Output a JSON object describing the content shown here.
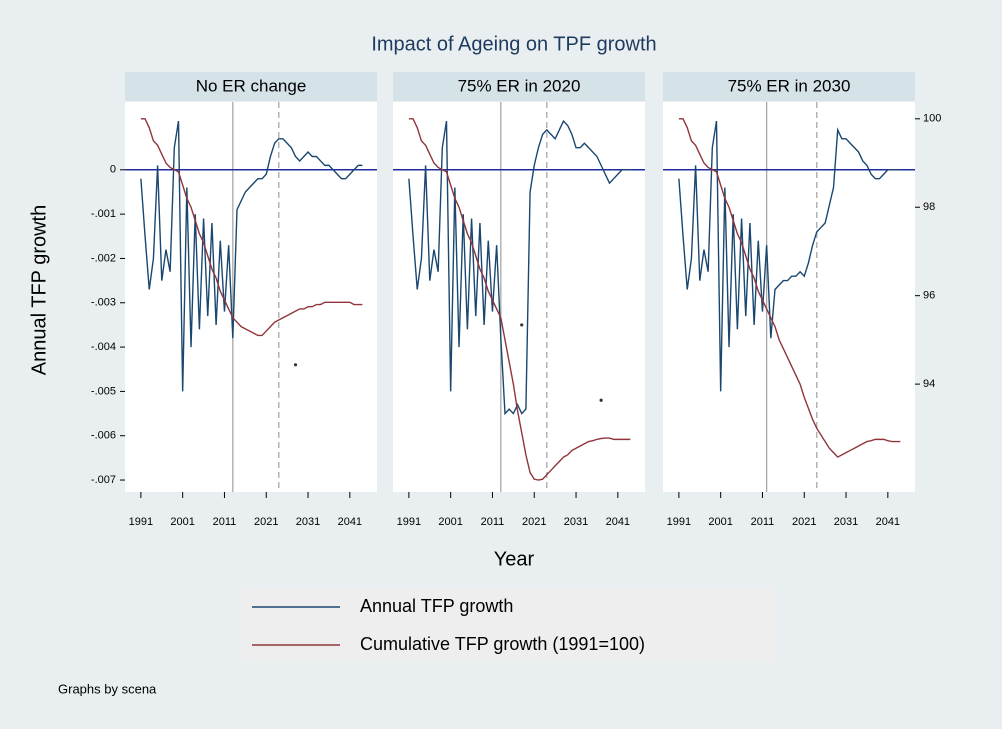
{
  "title": "Impact of Ageing on TPF growth",
  "xlabel": "Year",
  "ylabel": "Annual TFP growth",
  "note": "Graphs by scena",
  "chart_data": [
    {
      "type": "line",
      "panel_title": "No ER change",
      "x": [
        1991,
        1992,
        1993,
        1994,
        1995,
        1996,
        1997,
        1998,
        1999,
        2000,
        2001,
        2002,
        2003,
        2004,
        2005,
        2006,
        2007,
        2008,
        2009,
        2010,
        2011,
        2012,
        2013,
        2014,
        2015,
        2016,
        2017,
        2018,
        2019,
        2020,
        2021,
        2022,
        2023,
        2024,
        2025,
        2026,
        2027,
        2028,
        2029,
        2030,
        2031,
        2032,
        2033,
        2034,
        2035,
        2036,
        2037,
        2038,
        2039,
        2040,
        2041,
        2042,
        2043,
        2044
      ],
      "series": [
        {
          "name": "Annual TFP growth",
          "color": "#1a476f",
          "values": [
            -0.0002,
            -0.0015,
            -0.0027,
            -0.002,
            0.0001,
            -0.0025,
            -0.0018,
            -0.0023,
            0.0005,
            0.0011,
            -0.005,
            -0.0004,
            -0.004,
            -0.001,
            -0.0036,
            -0.0011,
            -0.0033,
            -0.0012,
            -0.0035,
            -0.0016,
            -0.0032,
            -0.0017,
            -0.0038,
            -0.0009,
            -0.0007,
            -0.0005,
            -0.0004,
            -0.0003,
            -0.0002,
            -0.0002,
            -0.0001,
            0.0003,
            0.0006,
            0.0007,
            0.0007,
            0.0006,
            0.0005,
            0.0003,
            0.0002,
            0.0003,
            0.0004,
            0.0003,
            0.0003,
            0.0002,
            0.0001,
            0.0001,
            0,
            -0.0001,
            -0.0002,
            -0.0002,
            -0.0001,
            0,
            0.0001,
            0.0001
          ]
        },
        {
          "name": "Cumulative TFP growth (1991=100)",
          "color": "#90353b",
          "axis": "y2",
          "values": [
            100,
            100,
            99.8,
            99.5,
            99.4,
            99.2,
            99,
            98.9,
            98.85,
            98.8,
            98.5,
            98.2,
            98,
            97.7,
            97.4,
            97.2,
            96.9,
            96.6,
            96.4,
            96.1,
            95.9,
            95.7,
            95.5,
            95.4,
            95.3,
            95.25,
            95.2,
            95.15,
            95.1,
            95.1,
            95.2,
            95.3,
            95.4,
            95.45,
            95.5,
            95.55,
            95.6,
            95.65,
            95.7,
            95.7,
            95.75,
            95.75,
            95.8,
            95.8,
            95.85,
            95.85,
            95.85,
            95.85,
            95.85,
            95.85,
            95.85,
            95.8,
            95.8,
            95.8
          ]
        }
      ],
      "points": [
        {
          "x": 2028,
          "y": -0.0044
        }
      ],
      "hline": {
        "y": 0,
        "color": "#1f2ca0"
      },
      "vlines": [
        {
          "x": 2013,
          "dashed": false
        },
        {
          "x": 2024,
          "dashed": true
        }
      ],
      "xlim": [
        1987.2,
        2047.5
      ],
      "xticks": [
        1991,
        2001,
        2011,
        2021,
        2031,
        2041
      ],
      "ylim": [
        -0.00727,
        0.00153
      ],
      "yticks": [
        {
          "value": 0,
          "label": "0"
        },
        {
          "value": -0.001,
          "label": "-.001"
        },
        {
          "value": -0.002,
          "label": "-.002"
        },
        {
          "value": -0.003,
          "label": "-.003"
        },
        {
          "value": -0.004,
          "label": "-.004"
        },
        {
          "value": -0.005,
          "label": "-.005"
        },
        {
          "value": -0.006,
          "label": "-.006"
        },
        {
          "value": -0.007,
          "label": "-.007"
        }
      ],
      "y2lim": [
        91.56,
        100.38
      ]
    },
    {
      "type": "line",
      "panel_title": "75% ER in 2020",
      "x": [
        1991,
        1992,
        1993,
        1994,
        1995,
        1996,
        1997,
        1998,
        1999,
        2000,
        2001,
        2002,
        2003,
        2004,
        2005,
        2006,
        2007,
        2008,
        2009,
        2010,
        2011,
        2012,
        2013,
        2014,
        2015,
        2016,
        2017,
        2018,
        2019,
        2020,
        2021,
        2022,
        2023,
        2024,
        2025,
        2026,
        2027,
        2028,
        2029,
        2030,
        2031,
        2032,
        2033,
        2034,
        2035,
        2036,
        2037,
        2038,
        2039,
        2040,
        2041,
        2042,
        2043,
        2044
      ],
      "series": [
        {
          "color": "#1a476f",
          "values": [
            -0.0002,
            -0.0015,
            -0.0027,
            -0.002,
            0.0001,
            -0.0025,
            -0.0018,
            -0.0023,
            0.0005,
            0.0011,
            -0.005,
            -0.0004,
            -0.004,
            -0.001,
            -0.0036,
            -0.0011,
            -0.0033,
            -0.0012,
            -0.0035,
            -0.0016,
            -0.0032,
            -0.0017,
            -0.0038,
            -0.0055,
            -0.0054,
            -0.0055,
            -0.0053,
            -0.0055,
            -0.0054,
            -0.0005,
            0.0001,
            0.0005,
            0.0008,
            0.0009,
            0.0008,
            0.0007,
            0.0009,
            0.0011,
            0.001,
            0.0008,
            0.0005,
            0.0005,
            0.0006,
            0.0005,
            0.0004,
            0.0003,
            0.0001,
            -0.0001,
            -0.0003,
            -0.0002,
            -0.0001,
            0,
            0,
            0
          ]
        },
        {
          "color": "#90353b",
          "axis": "y2",
          "values": [
            100,
            100,
            99.8,
            99.5,
            99.4,
            99.2,
            99,
            98.9,
            98.85,
            98.8,
            98.5,
            98.2,
            98,
            97.7,
            97.4,
            97.2,
            96.9,
            96.6,
            96.4,
            96.1,
            95.9,
            95.7,
            95.5,
            95,
            94.5,
            94,
            93.4,
            92.9,
            92.4,
            92,
            91.85,
            91.83,
            91.85,
            91.95,
            92.05,
            92.15,
            92.25,
            92.35,
            92.4,
            92.5,
            92.55,
            92.6,
            92.65,
            92.7,
            92.72,
            92.75,
            92.77,
            92.78,
            92.78,
            92.75,
            92.75,
            92.75,
            92.75,
            92.75
          ]
        }
      ],
      "points": [
        {
          "x": 2018,
          "y": -0.0035
        },
        {
          "x": 2037,
          "y": -0.0052
        }
      ],
      "hline": {
        "y": 0,
        "color": "#1f2ca0"
      },
      "vlines": [
        {
          "x": 2013,
          "dashed": false
        },
        {
          "x": 2024,
          "dashed": true
        }
      ],
      "xlim": [
        1987.2,
        2047.5
      ],
      "xticks": [
        1991,
        2001,
        2011,
        2021,
        2031,
        2041
      ],
      "ylim": [
        -0.00727,
        0.00153
      ],
      "y2lim": [
        91.56,
        100.38
      ]
    },
    {
      "type": "line",
      "panel_title": "75% ER in 2030",
      "x": [
        1991,
        1992,
        1993,
        1994,
        1995,
        1996,
        1997,
        1998,
        1999,
        2000,
        2001,
        2002,
        2003,
        2004,
        2005,
        2006,
        2007,
        2008,
        2009,
        2010,
        2011,
        2012,
        2013,
        2014,
        2015,
        2016,
        2017,
        2018,
        2019,
        2020,
        2021,
        2022,
        2023,
        2024,
        2025,
        2026,
        2027,
        2028,
        2029,
        2030,
        2031,
        2032,
        2033,
        2034,
        2035,
        2036,
        2037,
        2038,
        2039,
        2040,
        2041,
        2042,
        2043,
        2044
      ],
      "series": [
        {
          "color": "#1a476f",
          "values": [
            -0.0002,
            -0.0015,
            -0.0027,
            -0.002,
            0.0001,
            -0.0025,
            -0.0018,
            -0.0023,
            0.0005,
            0.0011,
            -0.005,
            -0.0004,
            -0.004,
            -0.001,
            -0.0036,
            -0.0011,
            -0.0033,
            -0.0012,
            -0.0035,
            -0.0016,
            -0.0032,
            -0.0017,
            -0.0038,
            -0.0027,
            -0.0026,
            -0.0025,
            -0.0025,
            -0.0024,
            -0.0024,
            -0.0023,
            -0.0024,
            -0.0021,
            -0.0017,
            -0.0014,
            -0.0013,
            -0.0012,
            -0.0008,
            -0.0004,
            0.0009,
            0.0007,
            0.0007,
            0.0006,
            0.0005,
            0.0004,
            0.0002,
            0.0001,
            -0.0001,
            -0.0002,
            -0.0002,
            -0.0001,
            0,
            0,
            0,
            0
          ]
        },
        {
          "color": "#90353b",
          "axis": "y2",
          "values": [
            100,
            100,
            99.8,
            99.5,
            99.4,
            99.2,
            99,
            98.9,
            98.85,
            98.8,
            98.5,
            98.2,
            98,
            97.7,
            97.4,
            97.2,
            96.9,
            96.6,
            96.4,
            96.1,
            95.9,
            95.7,
            95.5,
            95.3,
            95,
            94.8,
            94.6,
            94.4,
            94.2,
            94,
            93.7,
            93.45,
            93.2,
            93,
            92.85,
            92.7,
            92.55,
            92.45,
            92.35,
            92.4,
            92.45,
            92.5,
            92.55,
            92.6,
            92.65,
            92.7,
            92.72,
            92.75,
            92.75,
            92.75,
            92.72,
            92.7,
            92.7,
            92.7
          ]
        }
      ],
      "points": [],
      "hline": {
        "y": 0,
        "color": "#1f2ca0"
      },
      "vlines": [
        {
          "x": 2012,
          "dashed": false
        },
        {
          "x": 2024,
          "dashed": true
        }
      ],
      "xlim": [
        1987.2,
        2047.5
      ],
      "xticks": [
        1991,
        2001,
        2011,
        2021,
        2031,
        2041
      ],
      "ylim": [
        -0.00727,
        0.00153
      ],
      "y2lim": [
        91.56,
        100.38
      ],
      "y2ticks": [
        94,
        96,
        98,
        100
      ]
    }
  ]
}
